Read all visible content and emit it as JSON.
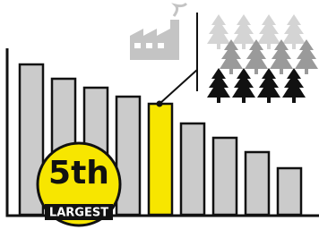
{
  "chart_data": {
    "type": "bar",
    "values": [
      84,
      76,
      71,
      66,
      62,
      51,
      43,
      35,
      26
    ],
    "colors": [
      "#cbcbcb",
      "#cbcbcb",
      "#cbcbcb",
      "#cbcbcb",
      "#f7e600",
      "#cbcbcb",
      "#cbcbcb",
      "#cbcbcb",
      "#cbcbcb"
    ],
    "ylim": [
      0,
      100
    ],
    "badge": {
      "rank": "5th",
      "label": "LARGEST"
    }
  }
}
